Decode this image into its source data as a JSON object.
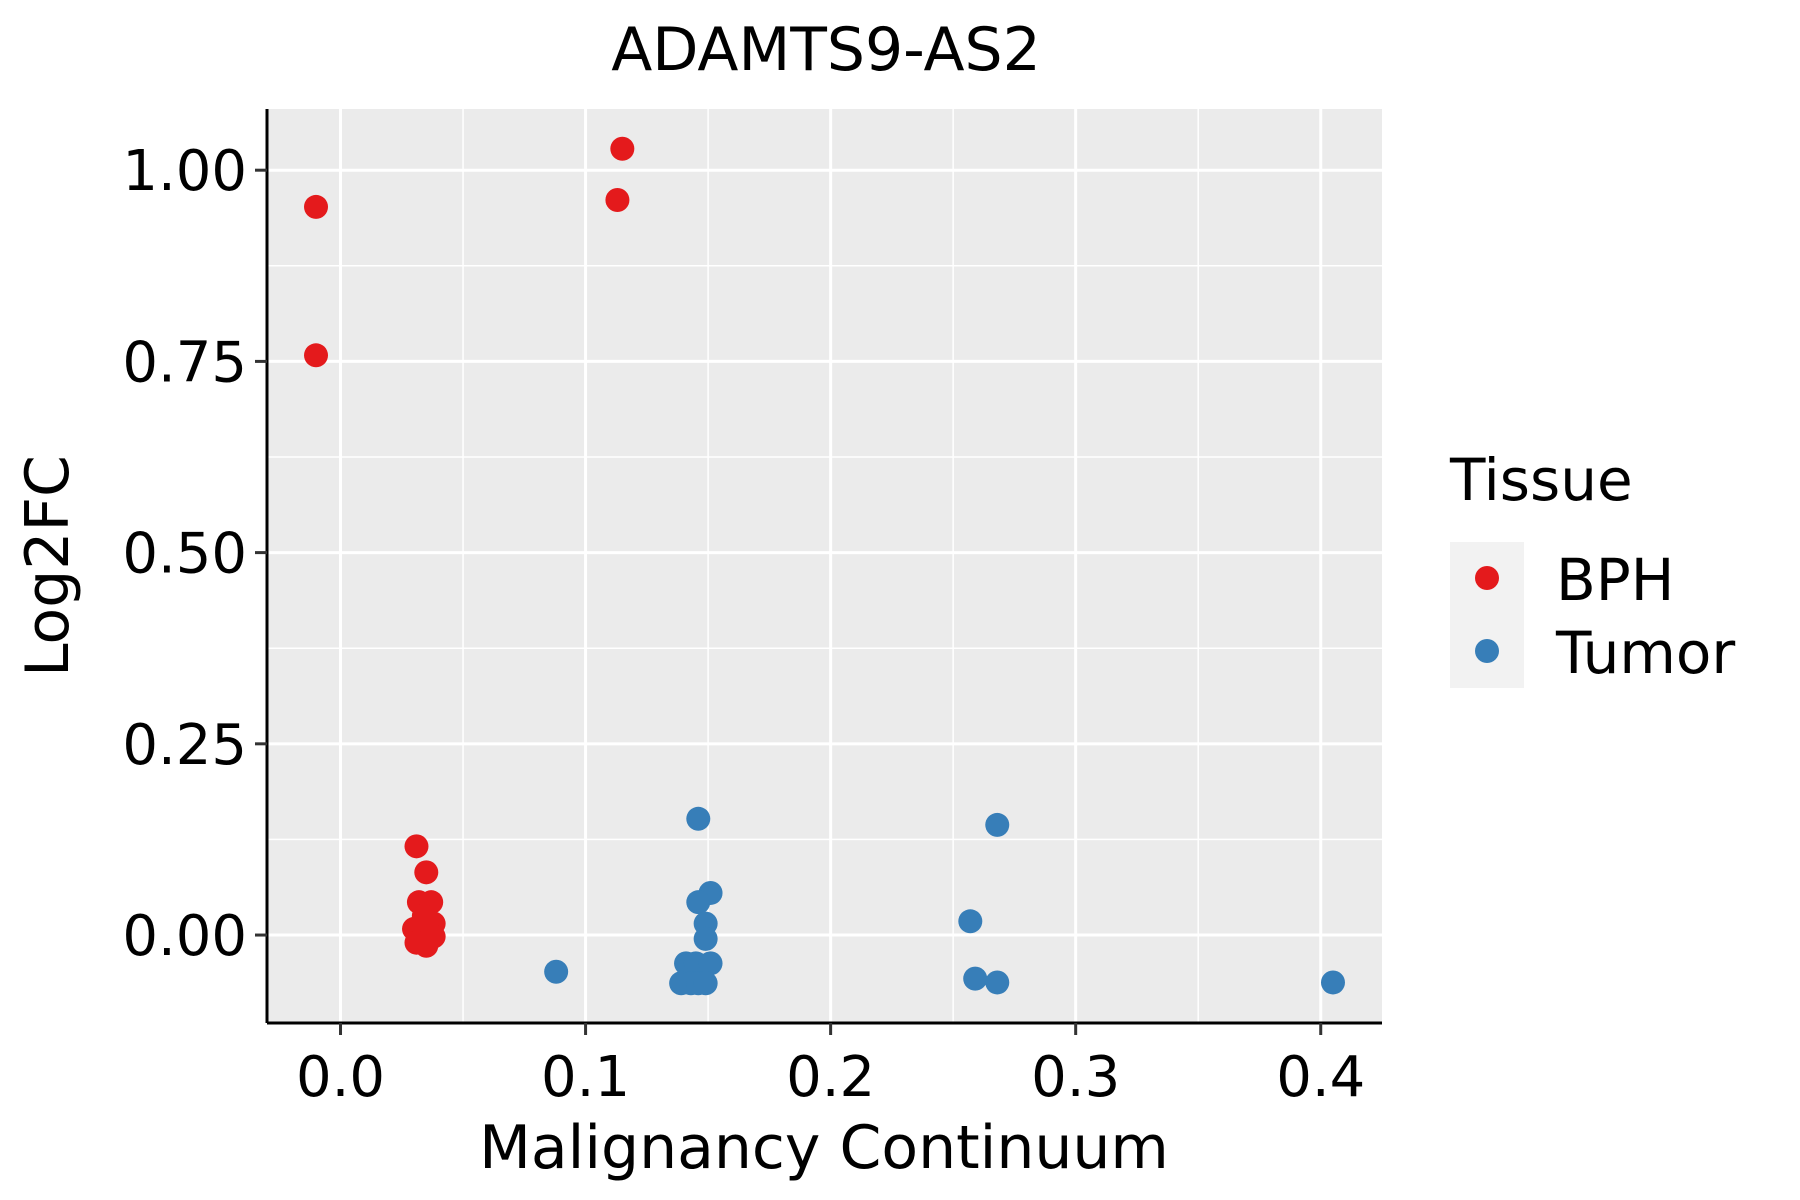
{
  "chart_data": {
    "type": "scatter",
    "title": "ADAMTS9-AS2",
    "xlabel": "Malignancy Continuum",
    "ylabel": "Log2FC",
    "xlim": [
      -0.03,
      0.425
    ],
    "ylim": [
      -0.115,
      1.08
    ],
    "x_ticks": [
      0.0,
      0.1,
      0.2,
      0.3,
      0.4
    ],
    "x_tick_labels": [
      "0.0",
      "0.1",
      "0.2",
      "0.3",
      "0.4"
    ],
    "y_ticks": [
      0.0,
      0.25,
      0.5,
      0.75,
      1.0
    ],
    "y_tick_labels": [
      "0.00",
      "0.25",
      "0.50",
      "0.75",
      "1.00"
    ],
    "grid": true,
    "legend": {
      "title": "Tissue",
      "position": "right",
      "entries": [
        {
          "label": "BPH",
          "color": "#E41A1C"
        },
        {
          "label": "Tumor",
          "color": "#377EB8"
        }
      ]
    },
    "series": [
      {
        "name": "BPH",
        "color": "#E41A1C",
        "points": [
          {
            "x": -0.01,
            "y": 0.952
          },
          {
            "x": -0.01,
            "y": 0.758
          },
          {
            "x": 0.115,
            "y": 1.028
          },
          {
            "x": 0.113,
            "y": 0.961
          },
          {
            "x": 0.031,
            "y": 0.116
          },
          {
            "x": 0.035,
            "y": 0.082
          },
          {
            "x": 0.032,
            "y": 0.043
          },
          {
            "x": 0.037,
            "y": 0.043
          },
          {
            "x": 0.034,
            "y": 0.025
          },
          {
            "x": 0.038,
            "y": 0.015
          },
          {
            "x": 0.03,
            "y": 0.008
          },
          {
            "x": 0.034,
            "y": 0.005
          },
          {
            "x": 0.038,
            "y": -0.002
          },
          {
            "x": 0.031,
            "y": -0.01
          },
          {
            "x": 0.035,
            "y": -0.014
          }
        ]
      },
      {
        "name": "Tumor",
        "color": "#377EB8",
        "points": [
          {
            "x": 0.088,
            "y": -0.048
          },
          {
            "x": 0.146,
            "y": 0.152
          },
          {
            "x": 0.151,
            "y": 0.055
          },
          {
            "x": 0.146,
            "y": 0.043
          },
          {
            "x": 0.149,
            "y": 0.015
          },
          {
            "x": 0.149,
            "y": -0.005
          },
          {
            "x": 0.141,
            "y": -0.037
          },
          {
            "x": 0.145,
            "y": -0.037
          },
          {
            "x": 0.151,
            "y": -0.037
          },
          {
            "x": 0.139,
            "y": -0.063
          },
          {
            "x": 0.143,
            "y": -0.063
          },
          {
            "x": 0.146,
            "y": -0.063
          },
          {
            "x": 0.149,
            "y": -0.063
          },
          {
            "x": 0.268,
            "y": 0.144
          },
          {
            "x": 0.257,
            "y": 0.018
          },
          {
            "x": 0.259,
            "y": -0.057
          },
          {
            "x": 0.268,
            "y": -0.062
          },
          {
            "x": 0.405,
            "y": -0.062
          }
        ]
      }
    ]
  }
}
